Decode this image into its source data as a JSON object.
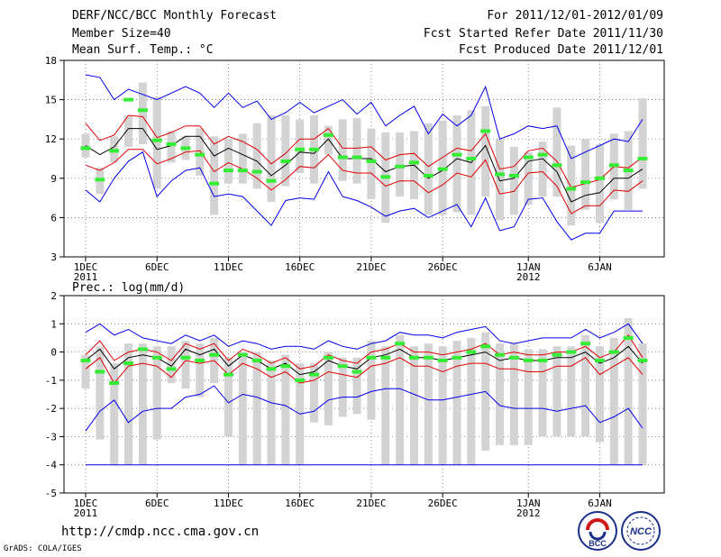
{
  "header": {
    "line1": "DERF/NCC/BCC Monthly Forecast",
    "line2": "Member Size=40",
    "line3": "Mean Surf. Temp.: °C",
    "right1": "For 2011/12/01-2012/01/09",
    "right2": "Fcst Started Refer Date 2011/11/30",
    "right3": "Fcst Produced Date 2011/12/01"
  },
  "footer": {
    "url": "http://cmdp.ncc.cma.gov.cn",
    "credit": "GrADS: COLA/IGES",
    "logo_left_text": "BCC",
    "logo_right_text": "NCC"
  },
  "colors": {
    "box": "#d3d3d3",
    "mean": "#000000",
    "inner": "#e00000",
    "outer": "#0000ee",
    "median": "#33ee33"
  },
  "chart_data": [
    {
      "type": "line",
      "title": "Mean Surf. Temp.: °C",
      "ylim": [
        3,
        18
      ],
      "yticks": [
        3,
        6,
        9,
        12,
        15,
        18
      ],
      "xticks": [
        {
          "day": 1,
          "label": "1DEC",
          "sublabel": "2011"
        },
        {
          "day": 6,
          "label": "6DEC"
        },
        {
          "day": 11,
          "label": "11DEC"
        },
        {
          "day": 16,
          "label": "16DEC"
        },
        {
          "day": 21,
          "label": "21DEC"
        },
        {
          "day": 26,
          "label": "26DEC"
        },
        {
          "day": 32,
          "label": "1JAN",
          "sublabel": "2012"
        },
        {
          "day": 37,
          "label": "6JAN"
        }
      ],
      "days": [
        1,
        2,
        3,
        4,
        5,
        6,
        7,
        8,
        9,
        10,
        11,
        12,
        13,
        14,
        15,
        16,
        17,
        18,
        19,
        20,
        21,
        22,
        23,
        24,
        25,
        26,
        27,
        28,
        29,
        30,
        31,
        32,
        33,
        34,
        35,
        36,
        37,
        38,
        39,
        40
      ],
      "mean": [
        11.5,
        10.8,
        11.4,
        12.8,
        12.8,
        11.2,
        11.5,
        12.2,
        12.2,
        10.7,
        11.3,
        10.8,
        10.3,
        9.2,
        10.0,
        11.0,
        10.9,
        12.0,
        10.5,
        10.5,
        10.5,
        9.5,
        9.9,
        10.0,
        9.0,
        9.6,
        10.5,
        10.2,
        11.5,
        8.8,
        9.0,
        10.3,
        10.5,
        9.5,
        7.2,
        7.7,
        7.9,
        9.0,
        9.0,
        9.7
      ],
      "inner_upper": [
        13.2,
        11.9,
        12.3,
        13.8,
        13.7,
        12.1,
        12.5,
        13.0,
        13.0,
        11.6,
        12.2,
        11.8,
        11.2,
        10.1,
        10.9,
        12.0,
        12.0,
        12.8,
        11.3,
        11.3,
        11.4,
        10.4,
        10.8,
        10.9,
        9.9,
        10.6,
        11.3,
        11.1,
        12.4,
        9.7,
        9.9,
        11.1,
        11.3,
        10.3,
        8.3,
        8.6,
        8.9,
        9.9,
        9.8,
        10.6
      ],
      "inner_lower": [
        10.0,
        9.6,
        10.2,
        11.2,
        11.2,
        10.1,
        10.5,
        11.0,
        11.1,
        9.5,
        10.2,
        9.7,
        9.0,
        8.1,
        8.9,
        9.9,
        9.8,
        10.8,
        9.6,
        9.4,
        9.4,
        8.4,
        8.8,
        8.8,
        7.9,
        8.5,
        9.4,
        9.1,
        10.4,
        7.8,
        8.0,
        9.4,
        9.5,
        8.4,
        6.3,
        6.9,
        6.9,
        8.1,
        8.0,
        8.8
      ],
      "upper": [
        16.9,
        16.7,
        15.0,
        15.8,
        15.4,
        15.0,
        15.5,
        16.0,
        15.5,
        14.4,
        15.5,
        14.4,
        14.9,
        13.5,
        14.0,
        14.8,
        14.0,
        14.5,
        15.0,
        13.9,
        14.8,
        13.0,
        13.8,
        14.5,
        12.4,
        13.9,
        13.0,
        13.8,
        16.0,
        12.0,
        12.4,
        13.0,
        12.8,
        13.0,
        10.5,
        11.0,
        11.5,
        12.0,
        11.8,
        13.5
      ],
      "lower": [
        8.1,
        7.2,
        9.0,
        10.3,
        11.0,
        7.6,
        8.8,
        9.6,
        9.8,
        7.6,
        7.8,
        7.6,
        6.5,
        5.4,
        7.3,
        7.5,
        7.4,
        9.5,
        7.6,
        7.3,
        6.8,
        6.1,
        6.5,
        6.7,
        6.0,
        6.5,
        7.0,
        5.3,
        7.5,
        5.0,
        5.3,
        7.4,
        7.5,
        5.7,
        4.3,
        4.8,
        4.8,
        6.5,
        6.5,
        6.5
      ],
      "box_high": [
        12.4,
        9.8,
        12.2,
        13.8,
        16.3,
        15.2,
        12.6,
        12.2,
        12.8,
        12.2,
        12.0,
        12.4,
        13.2,
        13.8,
        13.8,
        13.5,
        13.8,
        13.0,
        13.5,
        13.6,
        12.8,
        12.5,
        12.5,
        12.6,
        13.2,
        13.4,
        13.8,
        14.2,
        14.5,
        12.0,
        11.4,
        11.0,
        11.8,
        14.4,
        11.5,
        12.0,
        11.6,
        12.4,
        12.6,
        15.1
      ],
      "box_low": [
        10.6,
        7.8,
        10.2,
        11.4,
        11.6,
        8.2,
        10.2,
        10.4,
        9.2,
        6.2,
        8.6,
        8.6,
        8.2,
        7.2,
        8.4,
        9.4,
        8.6,
        10.8,
        8.8,
        8.6,
        7.4,
        5.6,
        7.6,
        7.4,
        6.2,
        6.2,
        6.4,
        6.2,
        7.6,
        5.8,
        6.2,
        7.0,
        7.6,
        7.6,
        5.4,
        6.6,
        5.6,
        7.4,
        6.6,
        8.2
      ],
      "median": [
        11.3,
        8.9,
        11.1,
        15.0,
        14.2,
        11.9,
        11.6,
        11.3,
        10.8,
        8.6,
        9.6,
        9.6,
        9.5,
        8.8,
        10.3,
        11.2,
        11.2,
        12.3,
        10.6,
        10.6,
        10.3,
        9.1,
        9.9,
        10.2,
        9.2,
        9.7,
        10.8,
        10.5,
        12.6,
        9.3,
        9.2,
        10.6,
        10.8,
        10.0,
        8.2,
        8.7,
        9.0,
        10.0,
        9.6,
        10.5
      ]
    },
    {
      "type": "line",
      "title": "Prec.: log(mm/d)",
      "ylim": [
        -5,
        2
      ],
      "yticks": [
        -5,
        -4,
        -3,
        -2,
        -1,
        0,
        1,
        2
      ],
      "xticks": [
        {
          "day": 1,
          "label": "1DEC",
          "sublabel": "2011"
        },
        {
          "day": 6,
          "label": "6DEC"
        },
        {
          "day": 11,
          "label": "11DEC"
        },
        {
          "day": 16,
          "label": "16DEC"
        },
        {
          "day": 21,
          "label": "21DEC"
        },
        {
          "day": 26,
          "label": "26DEC"
        },
        {
          "day": 32,
          "label": "1JAN",
          "sublabel": "2012"
        },
        {
          "day": 37,
          "label": "6JAN"
        }
      ],
      "days": [
        1,
        2,
        3,
        4,
        5,
        6,
        7,
        8,
        9,
        10,
        11,
        12,
        13,
        14,
        15,
        16,
        17,
        18,
        19,
        20,
        21,
        22,
        23,
        24,
        25,
        26,
        27,
        28,
        29,
        30,
        31,
        32,
        33,
        34,
        35,
        36,
        37,
        38,
        39,
        40
      ],
      "floor": -4,
      "mean": [
        -0.3,
        0.1,
        -0.6,
        -0.2,
        -0.1,
        -0.2,
        -0.5,
        0.1,
        -0.1,
        0.1,
        -0.5,
        -0.1,
        -0.3,
        -0.6,
        -0.4,
        -0.8,
        -0.7,
        -0.3,
        -0.5,
        -0.6,
        -0.2,
        -0.1,
        0.1,
        -0.2,
        -0.2,
        -0.3,
        -0.2,
        -0.1,
        0.0,
        -0.3,
        -0.2,
        -0.3,
        -0.3,
        -0.2,
        -0.2,
        0.0,
        -0.4,
        -0.2,
        0.2,
        -0.4
      ],
      "inner_upper": [
        -0.1,
        0.4,
        -0.3,
        0.0,
        0.1,
        0.0,
        -0.3,
        0.3,
        0.1,
        0.3,
        -0.3,
        0.1,
        -0.1,
        -0.4,
        -0.2,
        -0.6,
        -0.5,
        -0.1,
        -0.3,
        -0.4,
        0.0,
        0.1,
        0.3,
        0.0,
        0.0,
        -0.1,
        0.0,
        0.1,
        0.3,
        -0.1,
        0.0,
        -0.1,
        -0.1,
        0.0,
        0.0,
        0.2,
        -0.2,
        0.0,
        0.6,
        -0.2
      ],
      "inner_lower": [
        -0.6,
        -0.2,
        -1.1,
        -0.5,
        -0.4,
        -0.5,
        -0.9,
        -0.3,
        -0.4,
        -0.3,
        -0.8,
        -0.4,
        -0.6,
        -0.9,
        -0.7,
        -1.1,
        -1.0,
        -0.7,
        -0.8,
        -0.9,
        -0.5,
        -0.4,
        -0.2,
        -0.5,
        -0.5,
        -0.7,
        -0.5,
        -0.4,
        -0.4,
        -0.6,
        -0.6,
        -0.7,
        -0.7,
        -0.5,
        -0.5,
        -0.2,
        -0.8,
        -0.5,
        -0.2,
        -0.8
      ],
      "upper": [
        0.7,
        1.0,
        0.6,
        0.8,
        0.5,
        0.4,
        0.3,
        0.6,
        0.4,
        0.6,
        0.2,
        0.4,
        0.3,
        0.1,
        0.2,
        0.2,
        0.1,
        0.4,
        0.2,
        0.1,
        0.3,
        0.4,
        0.7,
        0.6,
        0.6,
        0.5,
        0.7,
        0.8,
        0.9,
        0.4,
        0.3,
        0.4,
        0.5,
        0.5,
        0.5,
        0.8,
        0.5,
        0.7,
        1.0,
        0.3
      ],
      "lower": [
        -2.8,
        -2.1,
        -1.7,
        -2.5,
        -2.1,
        -2.0,
        -2.0,
        -1.6,
        -1.5,
        -1.2,
        -1.8,
        -1.5,
        -1.6,
        -1.8,
        -1.9,
        -2.2,
        -2.1,
        -1.7,
        -1.6,
        -1.6,
        -1.4,
        -1.3,
        -1.3,
        -1.5,
        -1.7,
        -1.7,
        -1.6,
        -1.5,
        -1.4,
        -1.9,
        -2.0,
        -2.0,
        -2.0,
        -2.1,
        -2.0,
        -1.9,
        -2.5,
        -2.3,
        -2.0,
        -2.7
      ],
      "box_high": [
        -0.1,
        0.2,
        -0.4,
        0.3,
        0.3,
        0.2,
        0.2,
        0.4,
        0.3,
        0.5,
        -0.2,
        0.0,
        0.0,
        -0.3,
        -0.1,
        -0.4,
        -0.4,
        0.0,
        -0.2,
        -0.2,
        0.4,
        0.2,
        0.6,
        0.2,
        0.3,
        0.2,
        0.4,
        0.5,
        0.7,
        0.3,
        0.3,
        0.1,
        0.1,
        0.2,
        0.2,
        0.6,
        0.2,
        0.5,
        1.2,
        0.3
      ],
      "box_low": [
        -1.3,
        -3.1,
        -4.0,
        -4.0,
        -4.0,
        -3.1,
        -1.1,
        -1.3,
        -1.6,
        -1.1,
        -3.0,
        -4.0,
        -4.0,
        -4.0,
        -4.0,
        -4.0,
        -2.5,
        -2.6,
        -2.3,
        -2.2,
        -2.4,
        -4.0,
        -4.0,
        -4.0,
        -4.0,
        -4.0,
        -4.0,
        -4.0,
        -3.5,
        -3.3,
        -3.3,
        -3.3,
        -3.0,
        -3.0,
        -3.0,
        -3.0,
        -3.2,
        -4.0,
        -4.0,
        -4.0
      ],
      "median": [
        -0.3,
        -0.7,
        -1.1,
        -0.4,
        0.1,
        -0.2,
        -0.6,
        -0.2,
        -0.3,
        -0.1,
        -0.8,
        -0.1,
        -0.3,
        -0.6,
        -0.5,
        -1.0,
        -0.8,
        -0.2,
        -0.5,
        -0.7,
        -0.2,
        -0.2,
        0.3,
        -0.2,
        -0.2,
        -0.3,
        -0.2,
        0.0,
        0.2,
        -0.1,
        -0.2,
        -0.3,
        -0.3,
        -0.1,
        0.0,
        0.3,
        -0.3,
        0.0,
        0.5,
        -0.3
      ]
    }
  ]
}
